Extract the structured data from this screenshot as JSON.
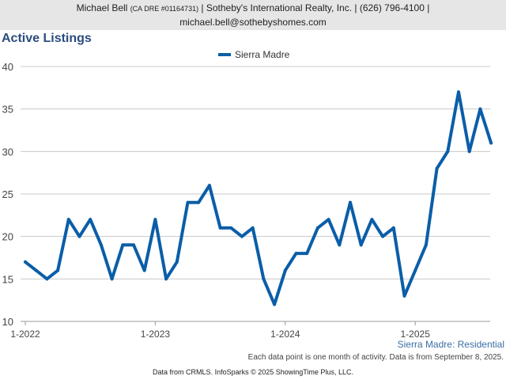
{
  "header": {
    "name": "Michael Bell",
    "dre": "(CA DRE #01164731)",
    "company_line": "| Sotheby's International Realty, Inc. | (626) 796-4100 |",
    "email": "michael.bell@sothebyshomes.com"
  },
  "series_label": "Sierra Madre: Residential",
  "note": "Each data point is one month of activity. Data is from September 8, 2025.",
  "footer": "Data from CRMLS. InfoSparks © 2025 ShowingTime Plus, LLC.",
  "colors": {
    "line": "#0a5ea8",
    "grid": "#c8c8c8",
    "header_bg": "#e6e6e6"
  },
  "chart_data": {
    "type": "line",
    "title": "Active Listings",
    "xlabel": "",
    "ylabel": "",
    "ylim": [
      10,
      40
    ],
    "yticks": [
      10,
      15,
      20,
      25,
      30,
      35,
      40
    ],
    "grid": true,
    "legend_position": "top-center",
    "x_tick_labels": [
      "1-2022",
      "1-2023",
      "1-2024",
      "1-2025"
    ],
    "x": [
      "2022-01",
      "2022-02",
      "2022-03",
      "2022-04",
      "2022-05",
      "2022-06",
      "2022-07",
      "2022-08",
      "2022-09",
      "2022-10",
      "2022-11",
      "2022-12",
      "2023-01",
      "2023-02",
      "2023-03",
      "2023-04",
      "2023-05",
      "2023-06",
      "2023-07",
      "2023-08",
      "2023-09",
      "2023-10",
      "2023-11",
      "2023-12",
      "2024-01",
      "2024-02",
      "2024-03",
      "2024-04",
      "2024-05",
      "2024-06",
      "2024-07",
      "2024-08",
      "2024-09",
      "2024-10",
      "2024-11",
      "2024-12",
      "2025-01",
      "2025-02",
      "2025-03",
      "2025-04",
      "2025-05",
      "2025-06",
      "2025-07",
      "2025-08"
    ],
    "series": [
      {
        "name": "Sierra Madre",
        "values": [
          17,
          16,
          15,
          16,
          22,
          20,
          22,
          19,
          15,
          19,
          19,
          16,
          22,
          15,
          17,
          24,
          24,
          26,
          21,
          21,
          20,
          21,
          15,
          12,
          16,
          18,
          18,
          21,
          22,
          19,
          24,
          19,
          22,
          20,
          21,
          13,
          16,
          19,
          28,
          30,
          37,
          30,
          35,
          31
        ]
      }
    ]
  }
}
